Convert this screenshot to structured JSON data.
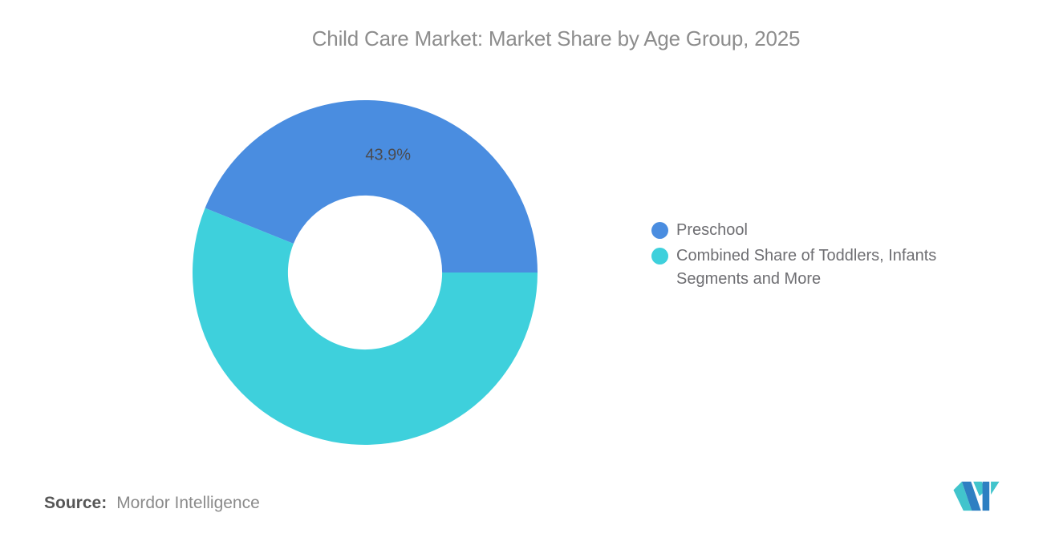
{
  "title": "Child Care Market: Market Share by Age Group, 2025",
  "chart_data": {
    "type": "pie",
    "donut": true,
    "title": "Child Care Market: Market Share by Age Group, 2025",
    "start_angle_deg": -68.04,
    "inner_radius_ratio": 0.447,
    "label_radius_ratio": 0.7,
    "legend_position": "right",
    "slices": [
      {
        "name": "Preschool",
        "value": 43.9,
        "label": "43.9%",
        "color": "#4A8DE0"
      },
      {
        "name": "Combined Share of Toddlers, Infants Segments and More",
        "value": 56.1,
        "label": "",
        "color": "#3ED0DC"
      }
    ]
  },
  "legend": {
    "items": [
      {
        "label": "Preschool",
        "color": "#4A8DE0"
      },
      {
        "label": "Combined Share of Toddlers, Infants Segments and More",
        "color": "#3ED0DC"
      }
    ]
  },
  "source": {
    "label": "Source:",
    "value": "Mordor Intelligence"
  },
  "logo": {
    "icon": "mordor-intelligence-logo",
    "colors": {
      "teal": "#41C4CC",
      "blue": "#2E7FC2"
    }
  },
  "colors": {
    "background": "#FFFFFF",
    "title_text": "#8D8D8D",
    "slice_label_text": "#4B4B4F",
    "legend_text": "#6E6E72",
    "source_label_text": "#565656",
    "source_value_text": "#8B8B8B"
  }
}
